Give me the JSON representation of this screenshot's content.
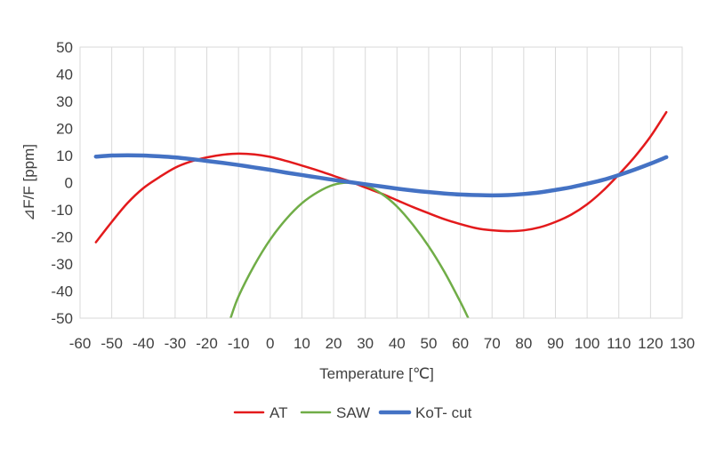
{
  "chart_data": {
    "type": "line",
    "title": "",
    "xlabel": "Temperature [℃]",
    "ylabel": "⊿F/F [ppm]",
    "xlim": [
      -60,
      130
    ],
    "ylim": [
      -50,
      50
    ],
    "xticks": [
      -60,
      -50,
      -40,
      -30,
      -20,
      -10,
      0,
      10,
      20,
      30,
      40,
      50,
      60,
      70,
      80,
      90,
      100,
      110,
      120,
      130
    ],
    "yticks": [
      -50,
      -40,
      -30,
      -20,
      -10,
      0,
      10,
      20,
      30,
      40,
      50
    ],
    "grid": "vertical",
    "legend_position": "bottom",
    "series": [
      {
        "name": "AT",
        "color": "#e31a1c",
        "points": [
          [
            -55,
            -22
          ],
          [
            -50,
            -14.5
          ],
          [
            -45,
            -7.5
          ],
          [
            -40,
            -2
          ],
          [
            -35,
            2
          ],
          [
            -30,
            5.5
          ],
          [
            -25,
            7.8
          ],
          [
            -20,
            9.3
          ],
          [
            -15,
            10.3
          ],
          [
            -10,
            10.7
          ],
          [
            -5,
            10.4
          ],
          [
            0,
            9.5
          ],
          [
            5,
            8
          ],
          [
            10,
            6.3
          ],
          [
            15,
            4.5
          ],
          [
            20,
            2.5
          ],
          [
            25,
            0.5
          ],
          [
            30,
            -1.8
          ],
          [
            35,
            -4
          ],
          [
            40,
            -6.5
          ],
          [
            45,
            -9
          ],
          [
            50,
            -11.3
          ],
          [
            55,
            -13.5
          ],
          [
            60,
            -15.3
          ],
          [
            65,
            -16.8
          ],
          [
            70,
            -17.6
          ],
          [
            75,
            -17.9
          ],
          [
            80,
            -17.6
          ],
          [
            85,
            -16.5
          ],
          [
            90,
            -14.5
          ],
          [
            95,
            -11.8
          ],
          [
            100,
            -8
          ],
          [
            105,
            -3
          ],
          [
            110,
            3
          ],
          [
            115,
            9.5
          ],
          [
            120,
            17
          ],
          [
            125,
            26
          ]
        ]
      },
      {
        "name": "SAW",
        "color": "#70ad47",
        "points": [
          [
            -12.5,
            -50
          ],
          [
            -10,
            -42
          ],
          [
            -5,
            -30.5
          ],
          [
            0,
            -21
          ],
          [
            5,
            -13.5
          ],
          [
            10,
            -7.6
          ],
          [
            15,
            -3.5
          ],
          [
            20,
            -0.8
          ],
          [
            25,
            0
          ],
          [
            30,
            -1
          ],
          [
            35,
            -4
          ],
          [
            40,
            -8.8
          ],
          [
            45,
            -15.5
          ],
          [
            50,
            -23.5
          ],
          [
            55,
            -33
          ],
          [
            60,
            -44
          ],
          [
            62.5,
            -50
          ]
        ]
      },
      {
        "name": "KoT- cut",
        "color": "#4472c4",
        "points": [
          [
            -55,
            9.6
          ],
          [
            -50,
            10
          ],
          [
            -45,
            10.1
          ],
          [
            -40,
            10
          ],
          [
            -35,
            9.7
          ],
          [
            -30,
            9.3
          ],
          [
            -25,
            8.7
          ],
          [
            -20,
            8
          ],
          [
            -15,
            7.3
          ],
          [
            -10,
            6.5
          ],
          [
            -5,
            5.6
          ],
          [
            0,
            4.7
          ],
          [
            5,
            3.7
          ],
          [
            10,
            2.8
          ],
          [
            15,
            1.9
          ],
          [
            20,
            1
          ],
          [
            25,
            0.2
          ],
          [
            30,
            -0.6
          ],
          [
            35,
            -1.4
          ],
          [
            40,
            -2.2
          ],
          [
            45,
            -2.9
          ],
          [
            50,
            -3.5
          ],
          [
            55,
            -4
          ],
          [
            60,
            -4.4
          ],
          [
            65,
            -4.6
          ],
          [
            70,
            -4.7
          ],
          [
            75,
            -4.6
          ],
          [
            80,
            -4.2
          ],
          [
            85,
            -3.6
          ],
          [
            90,
            -2.7
          ],
          [
            95,
            -1.7
          ],
          [
            100,
            -0.4
          ],
          [
            105,
            1
          ],
          [
            110,
            2.8
          ],
          [
            115,
            4.8
          ],
          [
            120,
            7
          ],
          [
            125,
            9.4
          ]
        ]
      }
    ]
  }
}
